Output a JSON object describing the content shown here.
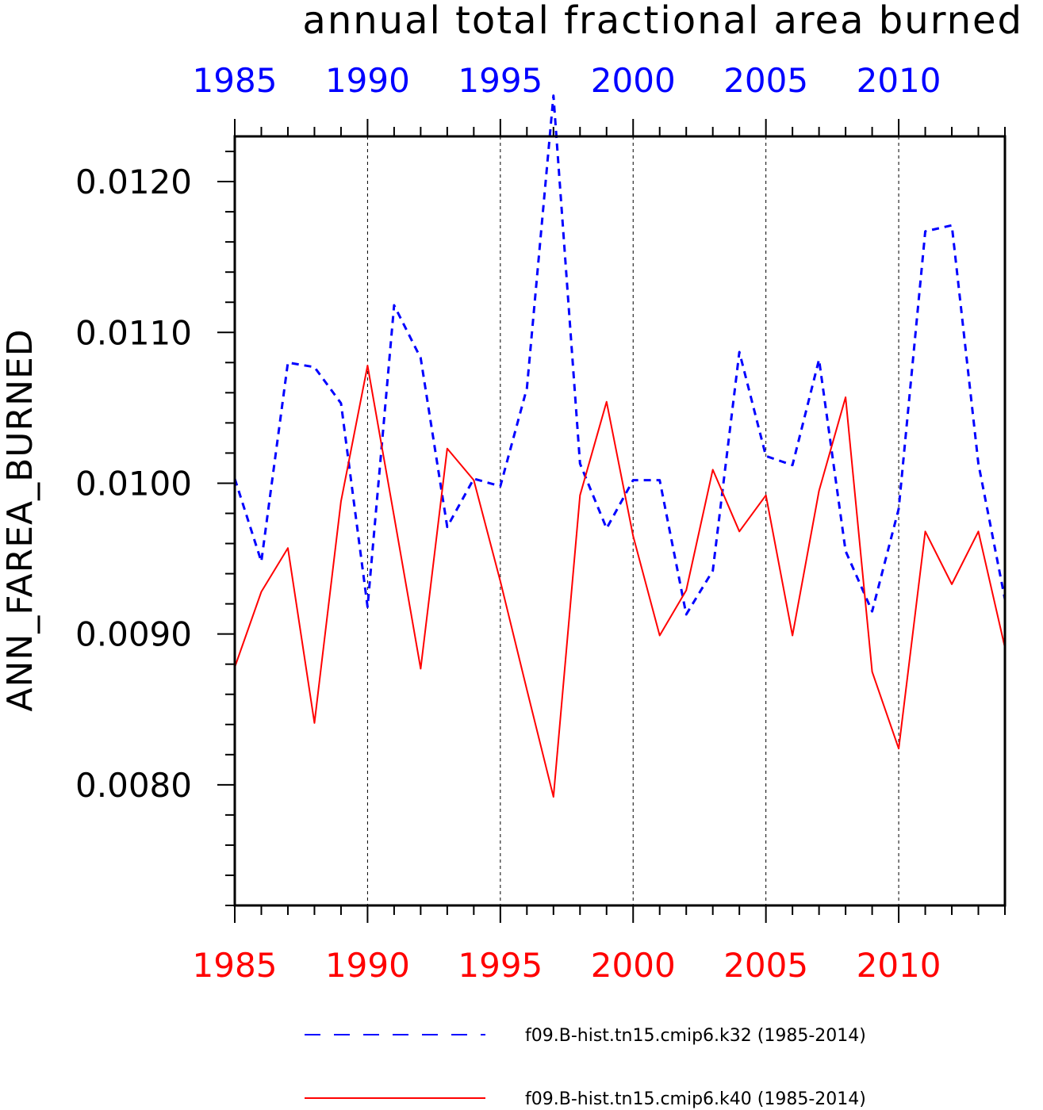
{
  "chart_data": {
    "type": "line",
    "title": "annual total fractional area burned",
    "ylabel": "ANN_FAREA_BURNED",
    "xlim": [
      1985,
      2014
    ],
    "ylim": [
      0.0072,
      0.0123
    ],
    "yticks": [
      0.008,
      0.009,
      0.01,
      0.011,
      0.012
    ],
    "ytick_labels": [
      "0.0080",
      "0.0090",
      "0.0100",
      "0.0110",
      "0.0120"
    ],
    "xticks": [
      1985,
      1990,
      1995,
      2000,
      2005,
      2010
    ],
    "xtick_labels": [
      "1985",
      "1990",
      "1995",
      "2000",
      "2005",
      "2010"
    ],
    "grid": "vertical dashed at major x ticks",
    "legend": "bottom",
    "x": [
      1985,
      1986,
      1987,
      1988,
      1989,
      1990,
      1991,
      1992,
      1993,
      1994,
      1995,
      1996,
      1997,
      1998,
      1999,
      2000,
      2001,
      2002,
      2003,
      2004,
      2005,
      2006,
      2007,
      2008,
      2009,
      2010,
      2011,
      2012,
      2013,
      2014
    ],
    "series": [
      {
        "name": "f09.B-hist.tn15.cmip6.k32 (1985-2014)",
        "color": "#0000ff",
        "style": "dashed",
        "values": [
          0.01003,
          0.00948,
          0.0108,
          0.01077,
          0.01053,
          0.00918,
          0.01118,
          0.01083,
          0.00971,
          0.01003,
          0.00998,
          0.01063,
          0.01257,
          0.01013,
          0.0097,
          0.01002,
          0.01002,
          0.00913,
          0.00942,
          0.01087,
          0.01018,
          0.01012,
          0.01082,
          0.00955,
          0.00915,
          0.00983,
          0.01167,
          0.01171,
          0.01013,
          0.00923
        ]
      },
      {
        "name": "f09.B-hist.tn15.cmip6.k40 (1985-2014)",
        "color": "#ff0000",
        "style": "solid",
        "values": [
          0.00878,
          0.00928,
          0.00957,
          0.00841,
          0.00988,
          0.01078,
          0.00978,
          0.00877,
          0.01023,
          0.01002,
          0.00935,
          0.00863,
          0.00792,
          0.00992,
          0.01054,
          0.00965,
          0.00899,
          0.00929,
          0.01009,
          0.00968,
          0.00992,
          0.00899,
          0.00995,
          0.01057,
          0.00875,
          0.00824,
          0.00968,
          0.00933,
          0.00968,
          0.00891
        ]
      }
    ]
  }
}
